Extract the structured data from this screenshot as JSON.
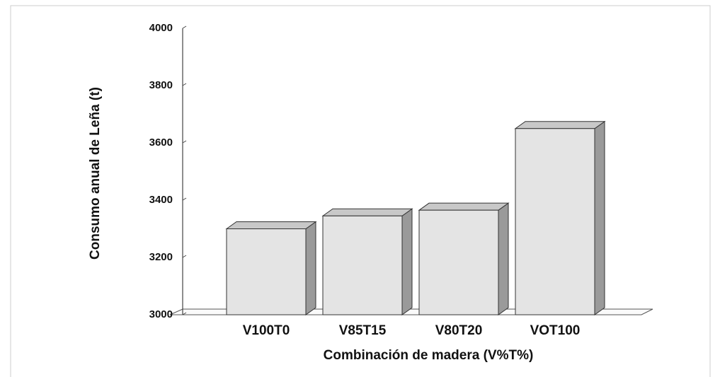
{
  "chart_data": {
    "type": "bar",
    "ylabel": "Consumo anual de Leña (t)",
    "xlabel": "Combinación de madera (V%T%)",
    "categories": [
      "V100T0",
      "V85T15",
      "V80T20",
      "VOT100"
    ],
    "values": [
      3300,
      3345,
      3365,
      3650
    ],
    "color": "#e4e4e4",
    "ylim": [
      3000,
      4000
    ],
    "yticks": [
      3000,
      3200,
      3400,
      3600,
      3800,
      4000
    ]
  }
}
